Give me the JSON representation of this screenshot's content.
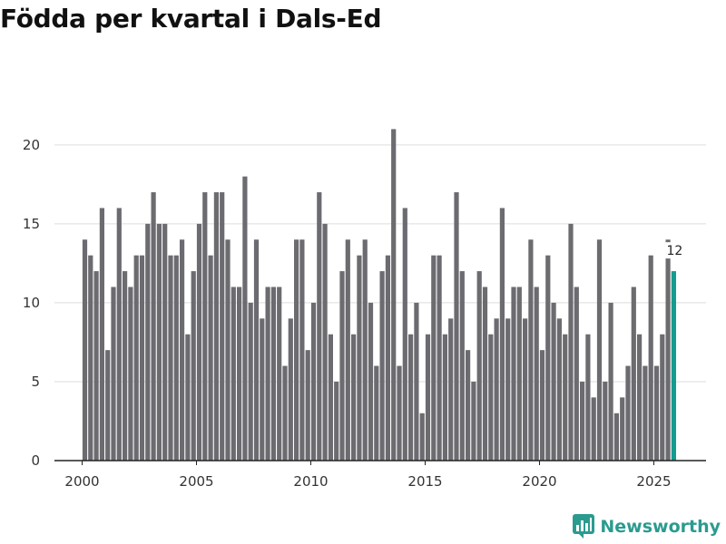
{
  "page": {
    "title": "Födda per kvartal i Dals-Ed"
  },
  "brand": {
    "name": "Newsworthy",
    "color": "#2b9b8f"
  },
  "chart_data": {
    "type": "bar",
    "title": "Födda per kvartal i Dals-Ed",
    "xlabel": "",
    "ylabel": "",
    "ylim": [
      0,
      22
    ],
    "yticks": [
      0,
      5,
      10,
      15,
      20
    ],
    "xticks": [
      2000,
      2005,
      2010,
      2015,
      2020,
      2025
    ],
    "grid": true,
    "legend": "none",
    "colors": {
      "bar": "#6b6b70",
      "highlight": "#139c8f",
      "grid": "#dddddd",
      "axis": "#222222"
    },
    "start_year": 2000,
    "periods_per_year": 4,
    "values": [
      14,
      13,
      12,
      16,
      7,
      11,
      16,
      12,
      11,
      13,
      13,
      15,
      17,
      15,
      15,
      13,
      13,
      14,
      8,
      12,
      15,
      17,
      13,
      17,
      17,
      14,
      11,
      11,
      18,
      10,
      14,
      9,
      11,
      11,
      11,
      6,
      9,
      14,
      14,
      7,
      10,
      17,
      15,
      8,
      5,
      12,
      14,
      8,
      13,
      14,
      10,
      6,
      12,
      13,
      21,
      6,
      16,
      8,
      10,
      3,
      8,
      13,
      13,
      8,
      9,
      17,
      12,
      7,
      5,
      12,
      11,
      8,
      9,
      16,
      9,
      11,
      11,
      9,
      14,
      11,
      7,
      13,
      10,
      9,
      8,
      15,
      11,
      5,
      8,
      4,
      14,
      5,
      10,
      3,
      4,
      6,
      11,
      8,
      6,
      13,
      6,
      8,
      14,
      12
    ],
    "highlight_index": 103,
    "highlight_label": "12"
  }
}
